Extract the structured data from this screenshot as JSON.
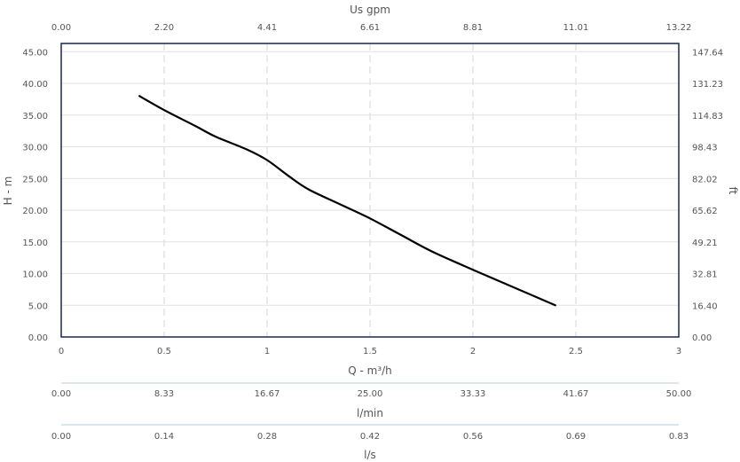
{
  "chart_data": {
    "type": "line",
    "x_label": "Q - m³/h",
    "y_label": "H - m",
    "top_axis_label": "Us gpm",
    "right_axis_label": "ft",
    "lmin_label": "l/min",
    "ls_label": "l/s",
    "xlim": [
      0,
      3
    ],
    "ylim": [
      0,
      46.3
    ],
    "x_ticks": [
      "0",
      "0.5",
      "1",
      "1.5",
      "2",
      "2.5",
      "3"
    ],
    "y_ticks": [
      "0.00",
      "5.00",
      "10.00",
      "15.00",
      "20.00",
      "25.00",
      "30.00",
      "35.00",
      "40.00",
      "45.00"
    ],
    "top_ticks": [
      "0.00",
      "2.20",
      "4.41",
      "6.61",
      "8.81",
      "11.01",
      "13.22"
    ],
    "right_ticks": [
      "0.00",
      "16.40",
      "32.81",
      "49.21",
      "65.62",
      "82.02",
      "98.43",
      "114.83",
      "131.23",
      "147.64"
    ],
    "lmin_ticks": [
      "0.00",
      "8.33",
      "16.67",
      "25.00",
      "33.33",
      "41.67",
      "50.00"
    ],
    "ls_ticks": [
      "0.00",
      "0.14",
      "0.28",
      "0.42",
      "0.56",
      "0.69",
      "0.83"
    ],
    "grid": true,
    "series": [
      {
        "color": "#000000",
        "x": [
          0.38,
          0.5,
          0.65,
          0.75,
          0.9,
          1.0,
          1.1,
          1.2,
          1.35,
          1.5,
          1.65,
          1.8,
          2.0,
          2.2,
          2.4
        ],
        "y": [
          38.0,
          35.8,
          33.3,
          31.6,
          29.6,
          27.9,
          25.5,
          23.3,
          21.0,
          18.7,
          16.1,
          13.5,
          10.6,
          7.8,
          5.0
        ]
      }
    ]
  }
}
